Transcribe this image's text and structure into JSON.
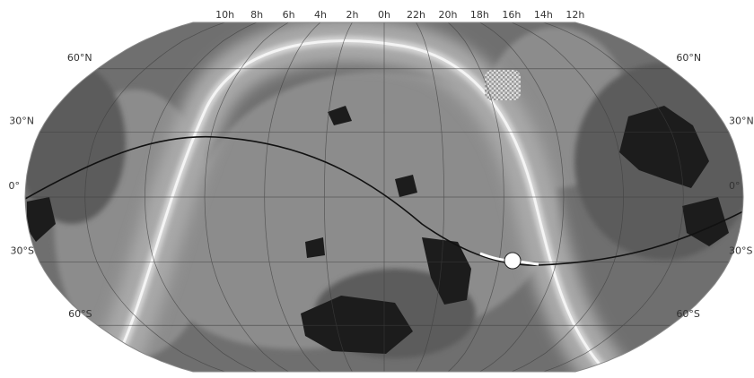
{
  "ra_labels": [
    "10h",
    "8h",
    "6h",
    "4h",
    "2h",
    "0h",
    "22h",
    "20h",
    "18h",
    "16h",
    "14h",
    "12h"
  ],
  "dec_labels_left": [
    "60°N",
    "30°N",
    "0°",
    "30°S",
    "60°S"
  ],
  "dec_labels_right": [
    "60°N",
    "30°N",
    "0°",
    "30°S",
    "60°S"
  ]
}
